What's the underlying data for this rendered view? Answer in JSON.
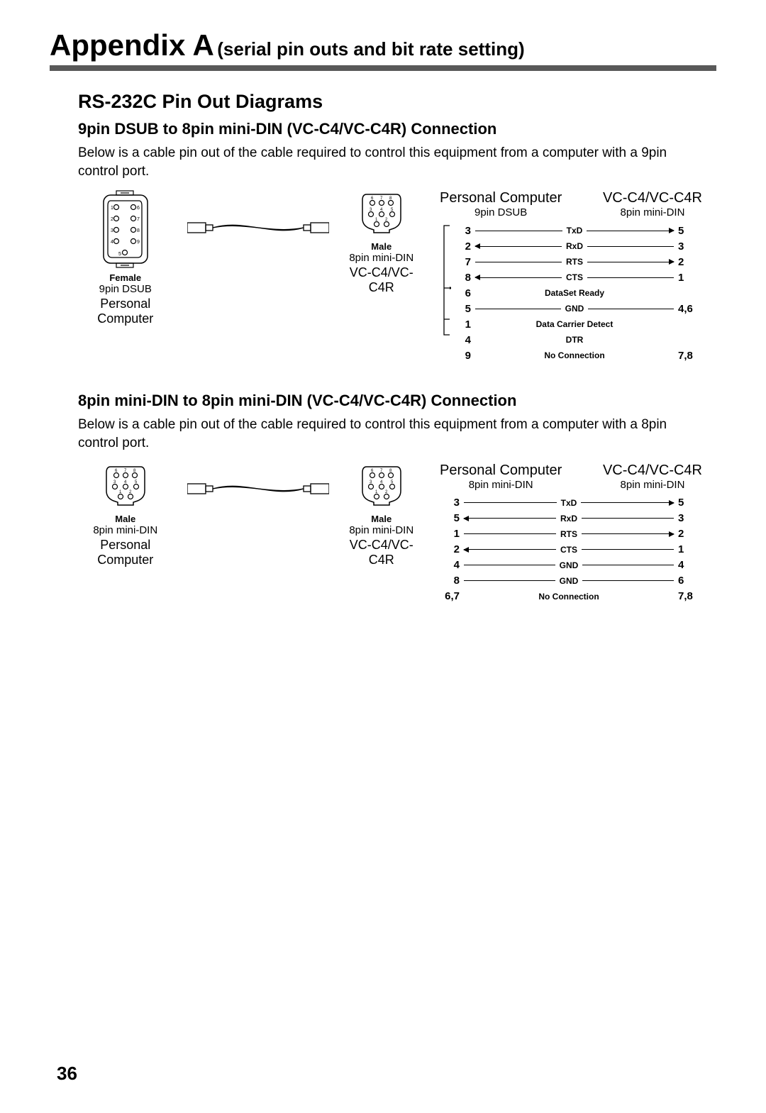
{
  "header": {
    "title": "Appendix A",
    "subtitle": "(serial pin outs and bit rate setting)"
  },
  "section_title": "RS-232C Pin Out Diagrams",
  "page_number": "36",
  "section1": {
    "heading": "9pin DSUB to 8pin mini-DIN (VC-C4/VC-C4R) Connection",
    "paragraph": "Below is a cable pin out of the cable required to control this equipment from a computer with a 9pin control port.",
    "left_connector": {
      "gender": "Female",
      "type": "9pin DSUB",
      "device": "Personal Computer"
    },
    "right_connector": {
      "gender": "Male",
      "type": "8pin mini-DIN",
      "device": "VC-C4/VC-C4R"
    },
    "table_head": {
      "left_top": "Personal Computer",
      "left_sub": "9pin DSUB",
      "right_top": "VC-C4/VC-C4R",
      "right_sub": "8pin mini-DIN"
    },
    "rows": [
      {
        "l": "3",
        "lbl": "TxD",
        "r": "5",
        "dir": "r"
      },
      {
        "l": "2",
        "lbl": "RxD",
        "r": "3",
        "dir": "l"
      },
      {
        "l": "7",
        "lbl": "RTS",
        "r": "2",
        "dir": "r"
      },
      {
        "l": "8",
        "lbl": "CTS",
        "r": "1",
        "dir": "l"
      },
      {
        "l": "6",
        "lbl": "DataSet Ready",
        "r": "",
        "dir": "none"
      },
      {
        "l": "5",
        "lbl": "GND",
        "r": "4,6",
        "dir": "line"
      },
      {
        "l": "1",
        "lbl": "Data Carrier Detect",
        "r": "",
        "dir": "none"
      },
      {
        "l": "4",
        "lbl": "DTR",
        "r": "",
        "dir": "none"
      },
      {
        "l": "9",
        "lbl": "No Connection",
        "r": "7,8",
        "dir": "text"
      }
    ]
  },
  "section2": {
    "heading": "8pin mini-DIN to 8pin mini-DIN (VC-C4/VC-C4R) Connection",
    "paragraph": "Below is a cable pin out of the cable required to control this equipment from a computer with a 8pin control port.",
    "left_connector": {
      "gender": "Male",
      "type": "8pin mini-DIN",
      "device": "Personal Computer"
    },
    "right_connector": {
      "gender": "Male",
      "type": "8pin mini-DIN",
      "device": "VC-C4/VC-C4R"
    },
    "table_head": {
      "left_top": "Personal Computer",
      "left_sub": "8pin mini-DIN",
      "right_top": "VC-C4/VC-C4R",
      "right_sub": "8pin mini-DIN"
    },
    "rows": [
      {
        "l": "3",
        "lbl": "TxD",
        "r": "5",
        "dir": "r"
      },
      {
        "l": "5",
        "lbl": "RxD",
        "r": "3",
        "dir": "l"
      },
      {
        "l": "1",
        "lbl": "RTS",
        "r": "2",
        "dir": "r"
      },
      {
        "l": "2",
        "lbl": "CTS",
        "r": "1",
        "dir": "l"
      },
      {
        "l": "4",
        "lbl": "GND",
        "r": "4",
        "dir": "line"
      },
      {
        "l": "8",
        "lbl": "GND",
        "r": "6",
        "dir": "line"
      },
      {
        "l": "6,7",
        "lbl": "No Connection",
        "r": "7,8",
        "dir": "text"
      }
    ]
  }
}
